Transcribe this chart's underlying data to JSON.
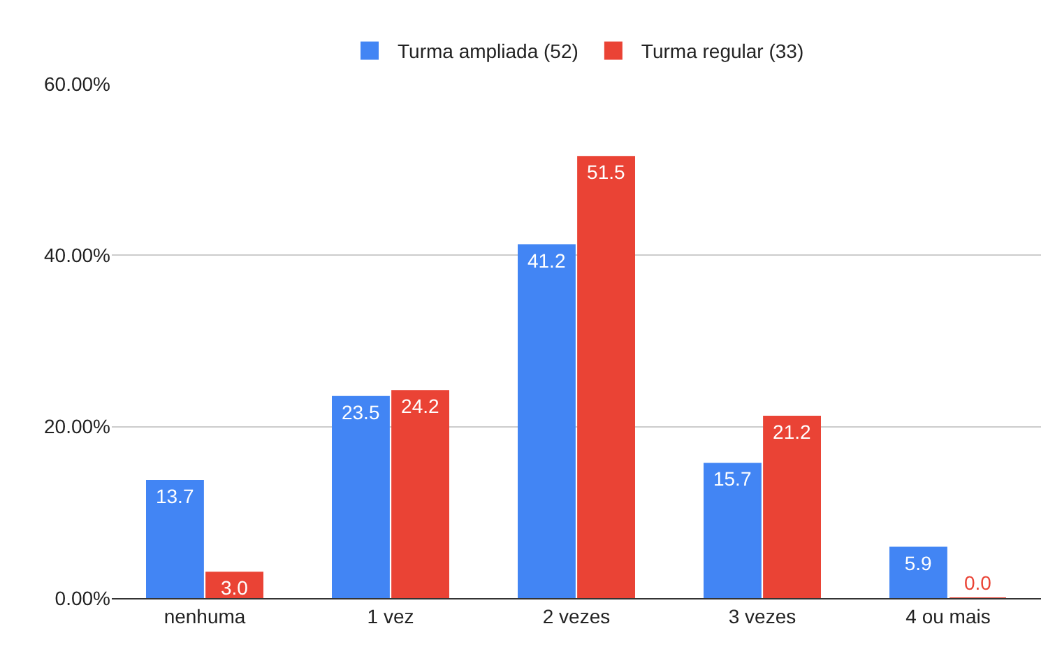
{
  "chart_data": {
    "type": "bar",
    "categories": [
      "nenhuma",
      "1 vez",
      "2 vezes",
      "3 vezes",
      "4 ou mais"
    ],
    "series": [
      {
        "name": "Turma ampliada (52)",
        "color": "#4285f4",
        "values": [
          13.7,
          23.5,
          41.2,
          15.7,
          5.9
        ],
        "value_labels": [
          "13.7",
          "23.5",
          "41.2",
          "15.7",
          "5.9"
        ]
      },
      {
        "name": "Turma regular (33)",
        "color": "#ea4335",
        "values": [
          3.0,
          24.2,
          51.5,
          21.2,
          0.0
        ],
        "value_labels": [
          "3.0",
          "24.2",
          "51.5",
          "21.2",
          "0.0"
        ]
      }
    ],
    "ylim": [
      0,
      60
    ],
    "yticks": [
      {
        "value": 0,
        "label": "0.00%"
      },
      {
        "value": 20,
        "label": "20.00%"
      },
      {
        "value": 40,
        "label": "40.00%"
      },
      {
        "value": 60,
        "label": "60.00%"
      }
    ],
    "grid": "y",
    "legend": "top"
  }
}
